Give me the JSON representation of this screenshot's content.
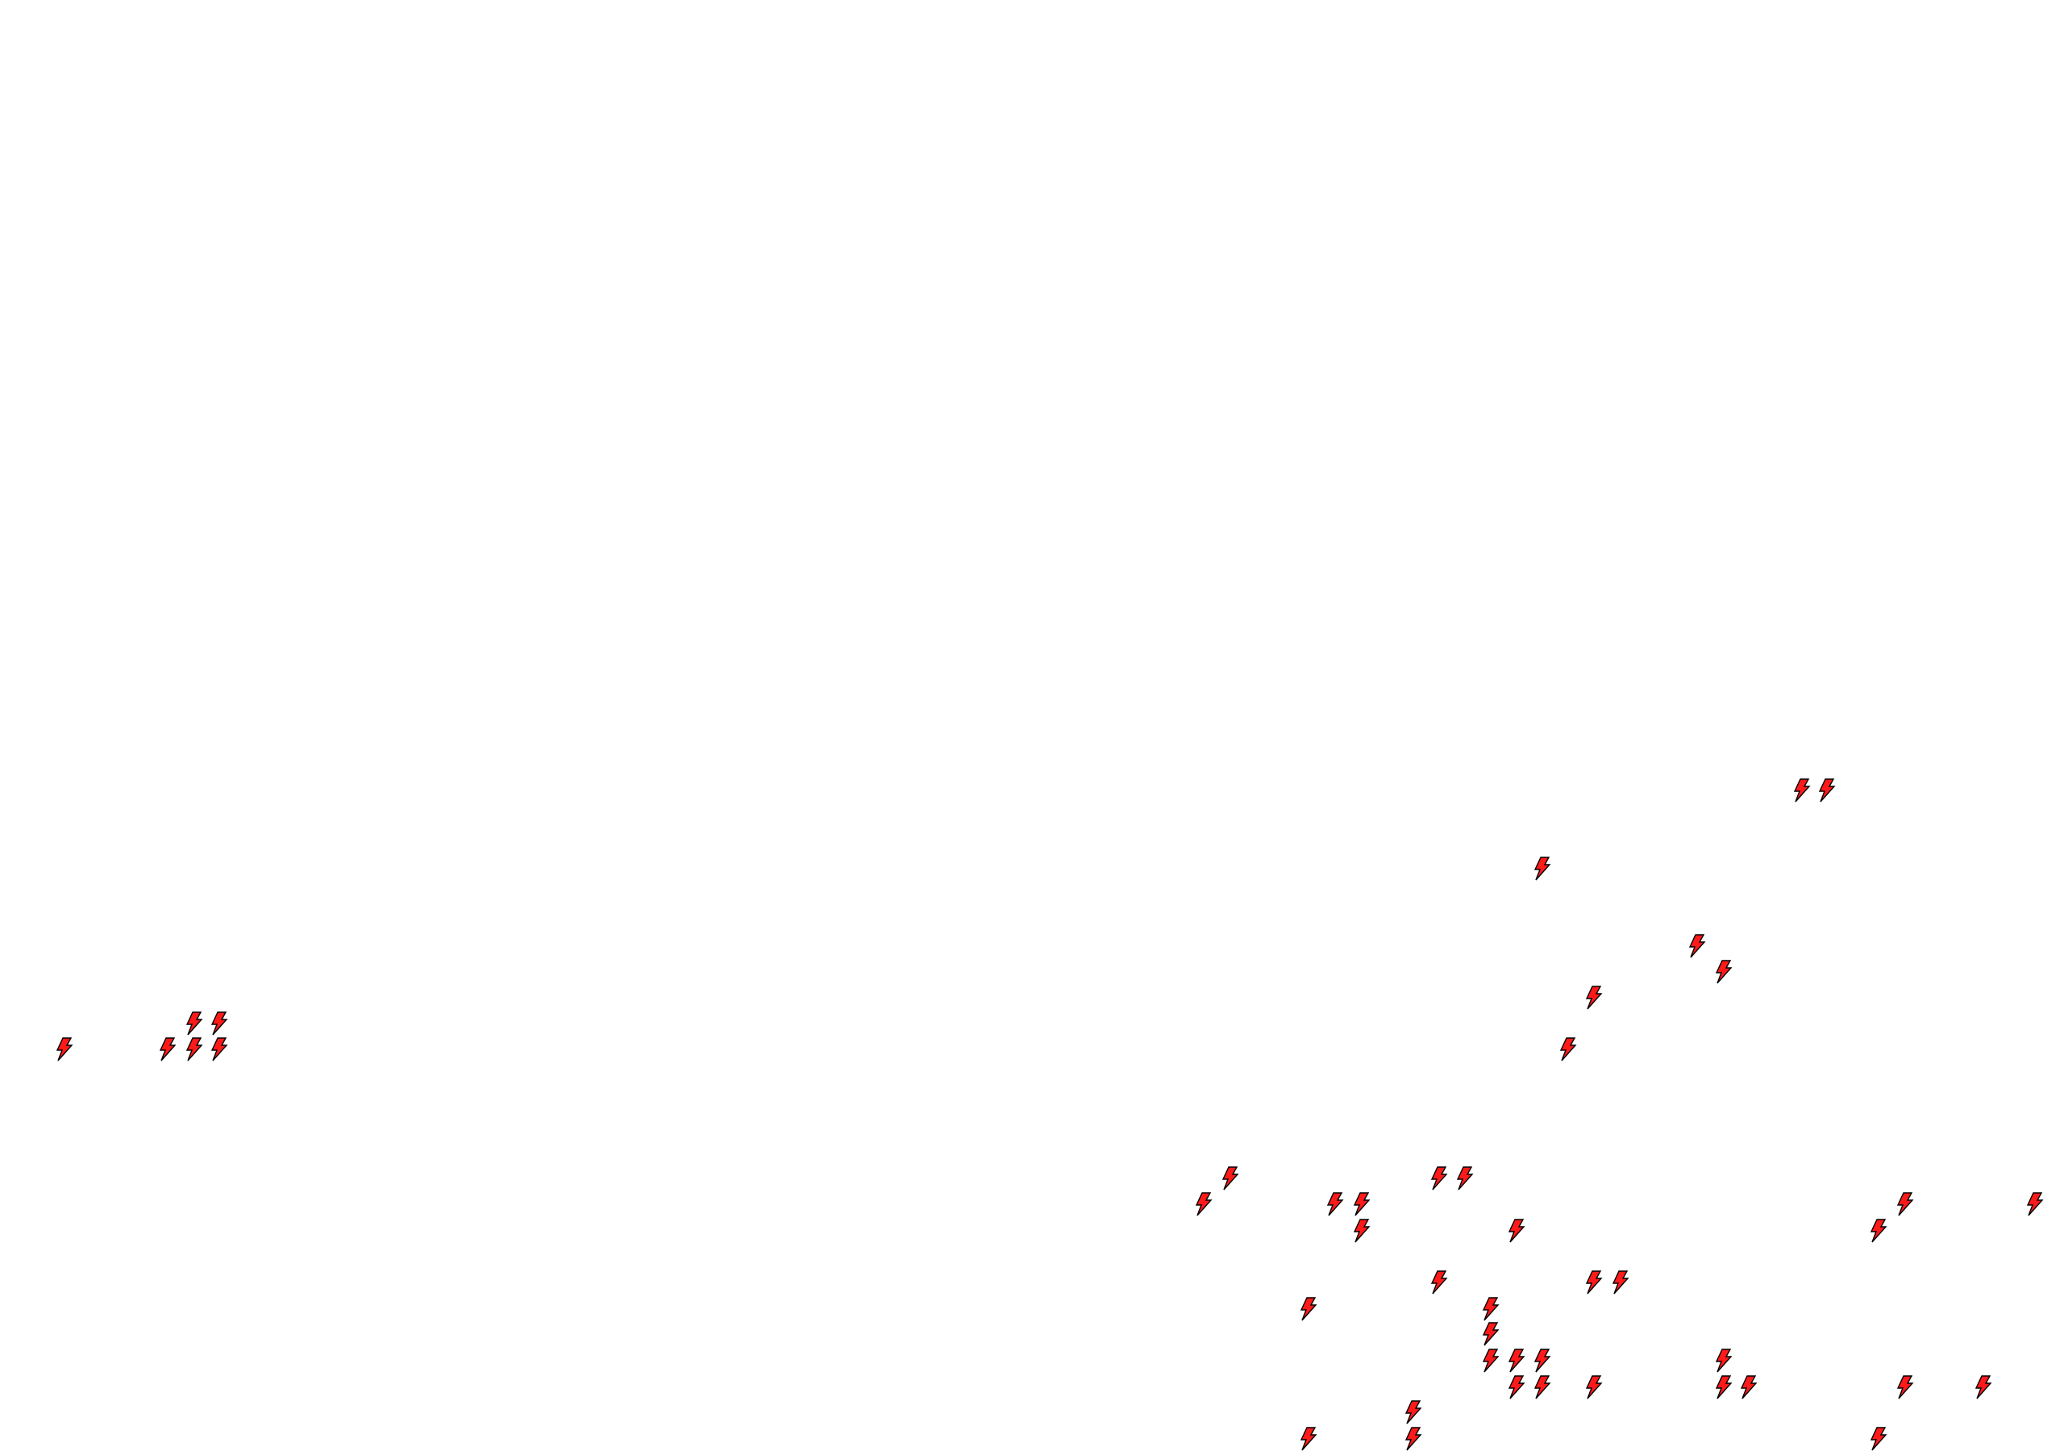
{
  "map": {
    "background": "#ffffff",
    "marker_icon": "lightning-bolt-icon",
    "marker_fill": "#ff1a1a",
    "marker_stroke": "#000000"
  }
}
